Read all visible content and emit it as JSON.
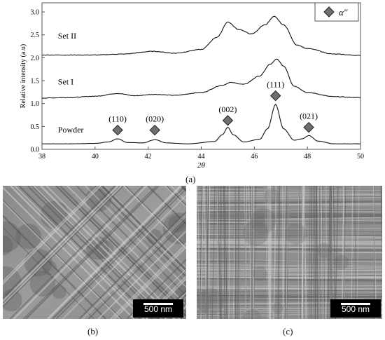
{
  "panel_labels": {
    "a": "(a)",
    "b": "(b)",
    "c": "(c)"
  },
  "scale_bars": {
    "b": "500 nm",
    "c": "500 nm"
  },
  "chart_data": {
    "type": "line",
    "xlabel": "2θ",
    "ylabel": "Relative intensity (a.u)",
    "xlim": [
      38,
      50
    ],
    "ylim": [
      0,
      3.2
    ],
    "xticks": [
      38,
      40,
      42,
      44,
      46,
      48,
      50
    ],
    "yticks": [
      0.0,
      0.5,
      1.0,
      1.5,
      2.0,
      2.5,
      3.0
    ],
    "ytick_labels": [
      "0.0",
      "0.5",
      "1.0",
      "1.5",
      "2.0",
      "2.5",
      "3.0"
    ],
    "legend": {
      "label": "α''",
      "marker": "diamond",
      "placement": "top-right"
    },
    "series": [
      {
        "name": "Powder",
        "x": [
          38,
          39,
          40,
          40.5,
          40.85,
          41.2,
          41.8,
          42.25,
          42.7,
          43.5,
          44.5,
          44.8,
          45.0,
          45.2,
          45.6,
          46.2,
          46.5,
          46.8,
          47.1,
          47.5,
          47.8,
          48.05,
          48.4,
          49,
          50
        ],
        "y": [
          0.12,
          0.12,
          0.13,
          0.16,
          0.23,
          0.15,
          0.14,
          0.21,
          0.14,
          0.12,
          0.17,
          0.32,
          0.48,
          0.32,
          0.16,
          0.22,
          0.45,
          0.98,
          0.45,
          0.2,
          0.23,
          0.3,
          0.18,
          0.12,
          0.12
        ]
      },
      {
        "name": "Set I",
        "x": [
          38,
          39,
          40,
          40.85,
          41.5,
          42.2,
          43,
          44,
          44.8,
          45.1,
          45.6,
          46.2,
          46.6,
          46.85,
          47.1,
          47.5,
          48,
          49,
          50
        ],
        "y": [
          1.12,
          1.13,
          1.16,
          1.22,
          1.17,
          1.2,
          1.18,
          1.24,
          1.4,
          1.46,
          1.42,
          1.6,
          1.86,
          1.97,
          1.82,
          1.38,
          1.24,
          1.15,
          1.13
        ]
      },
      {
        "name": "Set II",
        "x": [
          38,
          39,
          40,
          41,
          42.2,
          43,
          44,
          44.6,
          45.0,
          45.4,
          45.9,
          46.4,
          46.75,
          47.1,
          47.6,
          48,
          49,
          50
        ],
        "y": [
          2.06,
          2.06,
          2.06,
          2.08,
          2.14,
          2.1,
          2.18,
          2.45,
          2.78,
          2.62,
          2.52,
          2.72,
          2.9,
          2.72,
          2.28,
          2.2,
          2.08,
          2.05
        ]
      }
    ],
    "annotations": [
      {
        "text": "(110)",
        "x": 40.85,
        "y": 0.42
      },
      {
        "text": "(020)",
        "x": 42.25,
        "y": 0.42
      },
      {
        "text": "(002)",
        "x": 45.0,
        "y": 0.63
      },
      {
        "text": "(111)",
        "x": 46.8,
        "y": 1.17
      },
      {
        "text": "(021)",
        "x": 48.05,
        "y": 0.48
      }
    ]
  }
}
